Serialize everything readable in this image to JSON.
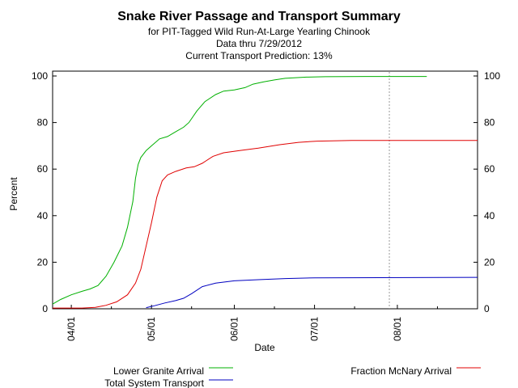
{
  "header": {
    "title": "Snake River Passage and Transport Summary",
    "subtitle": "for PIT-Tagged Wild Run-At-Large Yearling Chinook",
    "data_through": "Data thru 7/29/2012",
    "prediction": "Current Transport Prediction: 13%"
  },
  "chart_data": {
    "type": "line",
    "xlabel": "Date",
    "ylabel": "Percent",
    "ylim": [
      0,
      100
    ],
    "xlim": [
      "2012-03-25",
      "2012-08-31"
    ],
    "y_ticks": [
      "0",
      "20",
      "40",
      "60",
      "80",
      "100"
    ],
    "x_ticks": [
      {
        "date": "2012-04-01",
        "label": "04/01"
      },
      {
        "date": "2012-05-01",
        "label": "05/01"
      },
      {
        "date": "2012-06-01",
        "label": "06/01"
      },
      {
        "date": "2012-07-01",
        "label": "07/01"
      },
      {
        "date": "2012-08-01",
        "label": "08/01"
      }
    ],
    "marker_line": {
      "date": "2012-07-29",
      "style": "dotted",
      "color": "#999999"
    },
    "grid": false,
    "series": [
      {
        "name": "Lower Granite Arrival",
        "color": "#00b000",
        "points": [
          [
            "2012-03-25",
            2
          ],
          [
            "2012-03-28",
            4
          ],
          [
            "2012-04-01",
            6
          ],
          [
            "2012-04-05",
            7.5
          ],
          [
            "2012-04-08",
            8.5
          ],
          [
            "2012-04-11",
            10
          ],
          [
            "2012-04-14",
            14
          ],
          [
            "2012-04-17",
            20
          ],
          [
            "2012-04-20",
            27
          ],
          [
            "2012-04-22",
            35
          ],
          [
            "2012-04-24",
            46
          ],
          [
            "2012-04-25",
            56
          ],
          [
            "2012-04-26",
            62
          ],
          [
            "2012-04-27",
            65
          ],
          [
            "2012-04-29",
            68
          ],
          [
            "2012-05-01",
            70
          ],
          [
            "2012-05-04",
            73
          ],
          [
            "2012-05-07",
            74
          ],
          [
            "2012-05-10",
            76
          ],
          [
            "2012-05-13",
            78
          ],
          [
            "2012-05-15",
            80
          ],
          [
            "2012-05-18",
            85
          ],
          [
            "2012-05-21",
            89
          ],
          [
            "2012-05-25",
            92
          ],
          [
            "2012-05-28",
            93.5
          ],
          [
            "2012-06-01",
            94
          ],
          [
            "2012-06-05",
            95
          ],
          [
            "2012-06-08",
            96.5
          ],
          [
            "2012-06-12",
            97.5
          ],
          [
            "2012-06-16",
            98.3
          ],
          [
            "2012-06-20",
            99
          ],
          [
            "2012-06-28",
            99.5
          ],
          [
            "2012-07-05",
            99.7
          ],
          [
            "2012-07-20",
            99.8
          ],
          [
            "2012-08-12",
            99.8
          ]
        ]
      },
      {
        "name": "Fraction McNary Arrival",
        "color": "#e00000",
        "points": [
          [
            "2012-03-25",
            0.3
          ],
          [
            "2012-04-05",
            0.3
          ],
          [
            "2012-04-10",
            0.6
          ],
          [
            "2012-04-14",
            1.5
          ],
          [
            "2012-04-18",
            3
          ],
          [
            "2012-04-22",
            6
          ],
          [
            "2012-04-25",
            11
          ],
          [
            "2012-04-27",
            17
          ],
          [
            "2012-04-29",
            27
          ],
          [
            "2012-05-01",
            37
          ],
          [
            "2012-05-03",
            48
          ],
          [
            "2012-05-05",
            55
          ],
          [
            "2012-05-07",
            57.5
          ],
          [
            "2012-05-10",
            59
          ],
          [
            "2012-05-14",
            60.5
          ],
          [
            "2012-05-17",
            61
          ],
          [
            "2012-05-20",
            62.5
          ],
          [
            "2012-05-24",
            65.5
          ],
          [
            "2012-05-28",
            67
          ],
          [
            "2012-06-03",
            68
          ],
          [
            "2012-06-10",
            69
          ],
          [
            "2012-06-18",
            70.5
          ],
          [
            "2012-06-25",
            71.5
          ],
          [
            "2012-07-02",
            72
          ],
          [
            "2012-07-15",
            72.3
          ],
          [
            "2012-08-31",
            72.3
          ]
        ]
      },
      {
        "name": "Total System Transport",
        "color": "#0000c0",
        "points": [
          [
            "2012-04-29",
            0.5
          ],
          [
            "2012-05-02",
            1.3
          ],
          [
            "2012-05-06",
            2.5
          ],
          [
            "2012-05-10",
            3.5
          ],
          [
            "2012-05-13",
            4.5
          ],
          [
            "2012-05-16",
            6.5
          ],
          [
            "2012-05-20",
            9.5
          ],
          [
            "2012-05-25",
            11
          ],
          [
            "2012-06-01",
            12
          ],
          [
            "2012-06-10",
            12.5
          ],
          [
            "2012-06-20",
            13
          ],
          [
            "2012-07-01",
            13.3
          ],
          [
            "2012-08-31",
            13.5
          ]
        ]
      }
    ],
    "legend": {
      "placement": "bottom",
      "entries": [
        "Lower Granite Arrival",
        "Total System Transport",
        "Fraction McNary Arrival"
      ]
    }
  }
}
